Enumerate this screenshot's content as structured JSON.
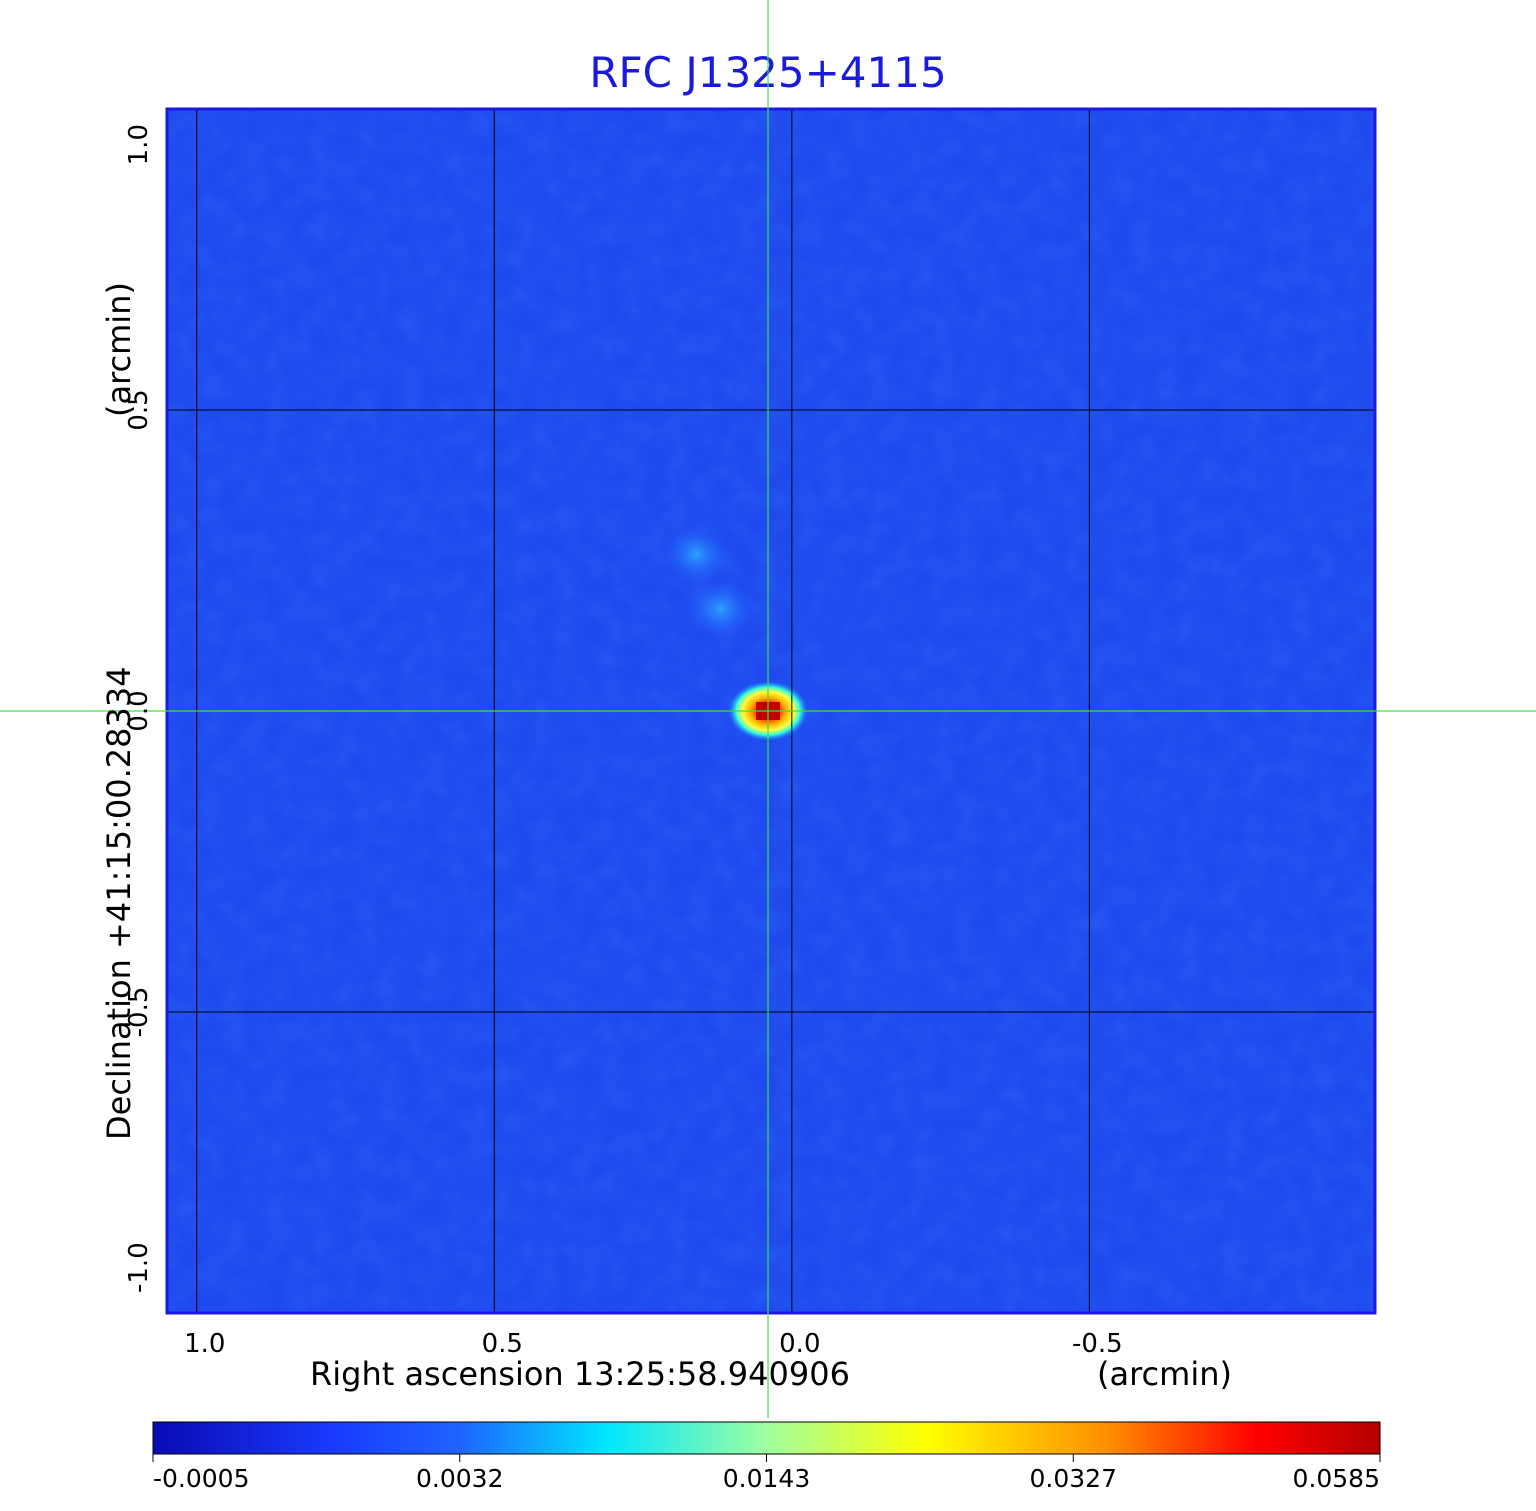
{
  "chart_data": {
    "type": "heatmap",
    "title": "RFC J1325+4115",
    "xlabel": "Right ascension  13:25:58.940906",
    "xunit": "(arcmin)",
    "ylabel": "Declination  +41:15:00.28334",
    "yunit": "(arcmin)",
    "xlim": [
      1.05,
      -0.98
    ],
    "ylim": [
      -1.0,
      1.0
    ],
    "x_ticks": [
      1.0,
      0.5,
      0.0,
      -0.5
    ],
    "x_tick_labels": [
      "1.0",
      "0.5",
      "0.0",
      "-0.5"
    ],
    "y_ticks": [
      -1.0,
      -0.5,
      0.0,
      0.5,
      1.0
    ],
    "y_tick_labels": [
      "-1.0",
      "-0.5",
      "0.0",
      "0.5",
      "1.0"
    ],
    "grid": true,
    "crosshair": [
      0.04,
      0.0
    ],
    "peak": {
      "x": 0.04,
      "y": 0.0
    },
    "secondary_features": [
      {
        "x": 0.16,
        "y": 0.26
      },
      {
        "x": 0.12,
        "y": 0.17
      }
    ],
    "colorbar": {
      "orientation": "horizontal",
      "tick_labels": [
        "-0.0005",
        "0.0032",
        "0.0143",
        "0.0327",
        "0.0585"
      ],
      "colors": [
        "#0a0ab4",
        "#1e64ff",
        "#00e6ff",
        "#ffff00",
        "#ff0000",
        "#b40000"
      ]
    },
    "colormap": "jet"
  }
}
